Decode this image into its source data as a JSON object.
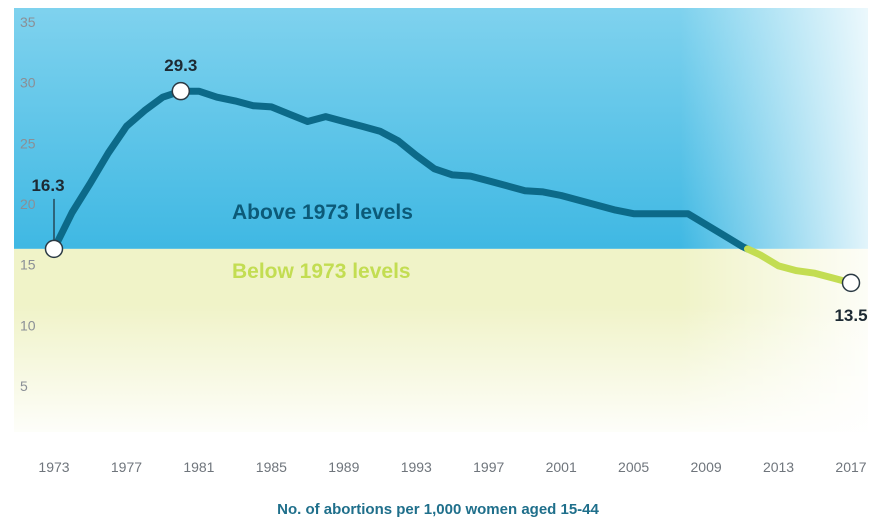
{
  "chart_data": {
    "type": "line",
    "xlabel": "No. of abortions per 1,000 women aged 15-44",
    "ylabel": "",
    "xlim": [
      1973,
      2017
    ],
    "ylim": [
      0,
      35
    ],
    "x_ticks": [
      "1973",
      "1977",
      "1981",
      "1985",
      "1989",
      "1993",
      "1997",
      "2001",
      "2005",
      "2009",
      "2013",
      "2017"
    ],
    "y_ticks": [
      "5",
      "10",
      "15",
      "20",
      "25",
      "30",
      "35"
    ],
    "zones": {
      "above_label": "Above 1973 levels",
      "below_label": "Below 1973 levels",
      "threshold": 16.3
    },
    "callouts": [
      {
        "x": 1973,
        "y": 16.3,
        "label": "16.3"
      },
      {
        "x": 1980,
        "y": 29.3,
        "label": "29.3"
      },
      {
        "x": 2017,
        "y": 13.5,
        "label": "13.5"
      }
    ],
    "series": [
      {
        "x": [
          1973,
          1974,
          1975,
          1976,
          1977,
          1978,
          1979,
          1980,
          1981,
          1982,
          1983,
          1984,
          1985,
          1986,
          1987,
          1988,
          1989,
          1990,
          1991,
          1992,
          1993,
          1994,
          1995,
          1996,
          1997,
          1998,
          1999,
          2000,
          2001,
          2002,
          2003,
          2004,
          2005,
          2006,
          2007,
          2008,
          2009,
          2010,
          2011,
          2012,
          2013,
          2014,
          2015,
          2016,
          2017
        ],
        "y": [
          16.3,
          19.3,
          21.7,
          24.2,
          26.4,
          27.7,
          28.8,
          29.3,
          29.3,
          28.8,
          28.5,
          28.1,
          28.0,
          27.4,
          26.8,
          27.2,
          26.8,
          26.4,
          26.0,
          25.2,
          24.0,
          22.9,
          22.4,
          22.3,
          21.9,
          21.5,
          21.1,
          21.0,
          20.7,
          20.3,
          19.9,
          19.5,
          19.2,
          19.2,
          19.2,
          19.2,
          18.3,
          17.4,
          16.5,
          15.8,
          14.9,
          14.5,
          14.3,
          13.9,
          13.5
        ],
        "colors": {
          "above": "#0c6a89",
          "below": "#c3dd52"
        }
      }
    ],
    "colors": {
      "above_zone_top": "#7fd2ee",
      "above_zone_bottom": "#3fb8e3",
      "below_zone": "#f0f3c8"
    }
  }
}
